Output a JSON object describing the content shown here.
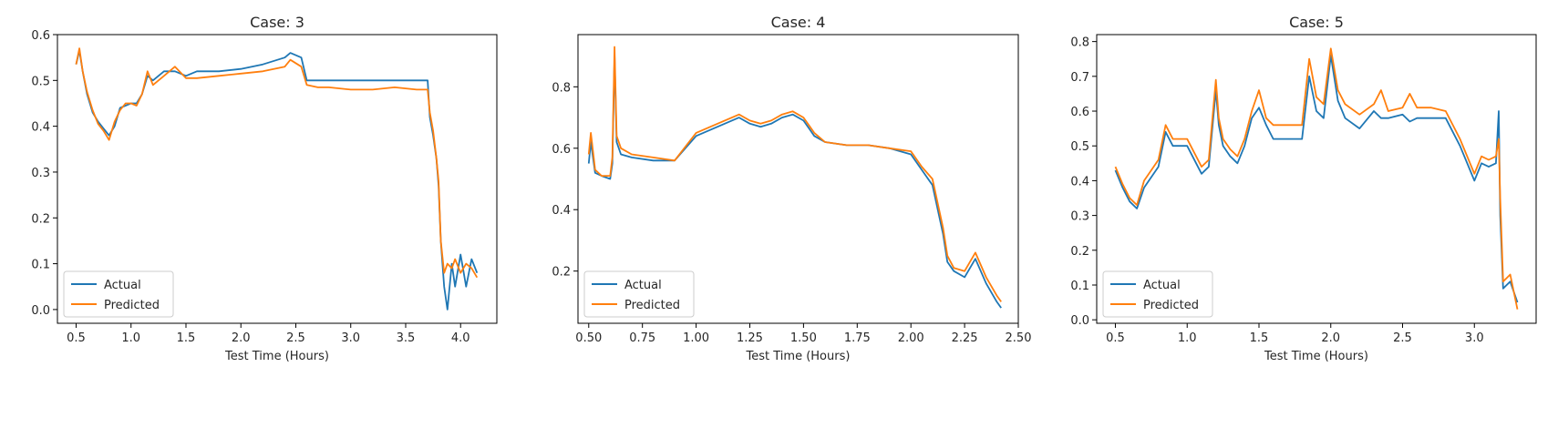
{
  "chart_data": [
    {
      "type": "line",
      "title": "Case: 3",
      "xlabel": "Test Time (Hours)",
      "ylabel": "",
      "xlim": [
        0.33,
        4.33
      ],
      "ylim": [
        -0.03,
        0.6
      ],
      "xticks": [
        0.5,
        1.0,
        1.5,
        2.0,
        2.5,
        3.0,
        3.5,
        4.0
      ],
      "xtick_labels": [
        "0.5",
        "1.0",
        "1.5",
        "2.0",
        "2.5",
        "3.0",
        "3.5",
        "4.0"
      ],
      "yticks": [
        0.0,
        0.1,
        0.2,
        0.3,
        0.4,
        0.5,
        0.6
      ],
      "ytick_labels": [
        "0.0",
        "0.1",
        "0.2",
        "0.3",
        "0.4",
        "0.5",
        "0.6"
      ],
      "legend_position": "lower-left",
      "series": [
        {
          "name": "Actual",
          "color": "#1f77b4",
          "x": [
            0.5,
            0.53,
            0.56,
            0.6,
            0.65,
            0.7,
            0.75,
            0.8,
            0.85,
            0.9,
            0.95,
            1.0,
            1.05,
            1.1,
            1.15,
            1.2,
            1.3,
            1.4,
            1.5,
            1.6,
            1.8,
            2.0,
            2.2,
            2.4,
            2.45,
            2.55,
            2.6,
            2.7,
            2.8,
            3.0,
            3.2,
            3.4,
            3.6,
            3.7,
            3.72,
            3.75,
            3.78,
            3.8,
            3.82,
            3.85,
            3.88,
            3.92,
            3.95,
            4.0,
            4.05,
            4.1,
            4.15
          ],
          "y": [
            0.535,
            0.565,
            0.52,
            0.47,
            0.43,
            0.41,
            0.395,
            0.38,
            0.4,
            0.44,
            0.445,
            0.45,
            0.45,
            0.47,
            0.51,
            0.5,
            0.52,
            0.52,
            0.51,
            0.52,
            0.52,
            0.525,
            0.535,
            0.55,
            0.56,
            0.55,
            0.5,
            0.5,
            0.5,
            0.5,
            0.5,
            0.5,
            0.5,
            0.5,
            0.42,
            0.38,
            0.33,
            0.27,
            0.15,
            0.05,
            0.0,
            0.1,
            0.05,
            0.12,
            0.05,
            0.11,
            0.08
          ]
        },
        {
          "name": "Predicted",
          "color": "#ff7f0e",
          "x": [
            0.5,
            0.53,
            0.56,
            0.6,
            0.65,
            0.7,
            0.75,
            0.8,
            0.85,
            0.9,
            0.95,
            1.0,
            1.05,
            1.1,
            1.15,
            1.2,
            1.3,
            1.4,
            1.5,
            1.6,
            1.8,
            2.0,
            2.2,
            2.4,
            2.45,
            2.55,
            2.6,
            2.7,
            2.8,
            3.0,
            3.2,
            3.4,
            3.6,
            3.7,
            3.72,
            3.75,
            3.78,
            3.8,
            3.82,
            3.85,
            3.88,
            3.92,
            3.95,
            4.0,
            4.05,
            4.1,
            4.15
          ],
          "y": [
            0.535,
            0.57,
            0.52,
            0.475,
            0.435,
            0.405,
            0.39,
            0.37,
            0.41,
            0.435,
            0.45,
            0.45,
            0.445,
            0.47,
            0.52,
            0.49,
            0.51,
            0.53,
            0.505,
            0.505,
            0.51,
            0.515,
            0.52,
            0.53,
            0.545,
            0.53,
            0.49,
            0.485,
            0.485,
            0.48,
            0.48,
            0.485,
            0.48,
            0.48,
            0.43,
            0.39,
            0.33,
            0.28,
            0.15,
            0.08,
            0.1,
            0.09,
            0.11,
            0.08,
            0.1,
            0.09,
            0.07
          ]
        }
      ]
    },
    {
      "type": "line",
      "title": "Case: 4",
      "xlabel": "Test Time (Hours)",
      "ylabel": "",
      "xlim": [
        0.45,
        2.5
      ],
      "ylim": [
        0.03,
        0.97
      ],
      "xticks": [
        0.5,
        0.75,
        1.0,
        1.25,
        1.5,
        1.75,
        2.0,
        2.25,
        2.5
      ],
      "xtick_labels": [
        "0.50",
        "0.75",
        "1.00",
        "1.25",
        "1.50",
        "1.75",
        "2.00",
        "2.25",
        "2.50"
      ],
      "yticks": [
        0.2,
        0.4,
        0.6,
        0.8
      ],
      "ytick_labels": [
        "0.2",
        "0.4",
        "0.6",
        "0.8"
      ],
      "legend_position": "lower-left",
      "series": [
        {
          "name": "Actual",
          "color": "#1f77b4",
          "x": [
            0.5,
            0.51,
            0.53,
            0.56,
            0.6,
            0.61,
            0.62,
            0.63,
            0.65,
            0.7,
            0.8,
            0.9,
            1.0,
            1.1,
            1.2,
            1.25,
            1.3,
            1.35,
            1.4,
            1.45,
            1.5,
            1.55,
            1.6,
            1.7,
            1.8,
            1.9,
            2.0,
            2.05,
            2.1,
            2.15,
            2.17,
            2.2,
            2.25,
            2.3,
            2.35,
            2.4,
            2.42
          ],
          "y": [
            0.55,
            0.62,
            0.52,
            0.51,
            0.5,
            0.55,
            0.9,
            0.62,
            0.58,
            0.57,
            0.56,
            0.56,
            0.64,
            0.67,
            0.7,
            0.68,
            0.67,
            0.68,
            0.7,
            0.71,
            0.69,
            0.64,
            0.62,
            0.61,
            0.61,
            0.6,
            0.58,
            0.53,
            0.48,
            0.32,
            0.23,
            0.2,
            0.18,
            0.24,
            0.16,
            0.1,
            0.08
          ]
        },
        {
          "name": "Predicted",
          "color": "#ff7f0e",
          "x": [
            0.5,
            0.51,
            0.53,
            0.56,
            0.6,
            0.61,
            0.62,
            0.63,
            0.65,
            0.7,
            0.8,
            0.9,
            1.0,
            1.1,
            1.2,
            1.25,
            1.3,
            1.35,
            1.4,
            1.45,
            1.5,
            1.55,
            1.6,
            1.7,
            1.8,
            1.9,
            2.0,
            2.05,
            2.1,
            2.15,
            2.17,
            2.2,
            2.25,
            2.3,
            2.35,
            2.4,
            2.42
          ],
          "y": [
            0.58,
            0.65,
            0.53,
            0.51,
            0.51,
            0.57,
            0.93,
            0.64,
            0.6,
            0.58,
            0.57,
            0.56,
            0.65,
            0.68,
            0.71,
            0.69,
            0.68,
            0.69,
            0.71,
            0.72,
            0.7,
            0.65,
            0.62,
            0.61,
            0.61,
            0.6,
            0.59,
            0.54,
            0.5,
            0.34,
            0.25,
            0.21,
            0.2,
            0.26,
            0.18,
            0.12,
            0.1
          ]
        }
      ]
    },
    {
      "type": "line",
      "title": "Case: 5",
      "xlabel": "Test Time (Hours)",
      "ylabel": "",
      "xlim": [
        0.37,
        3.43
      ],
      "ylim": [
        -0.01,
        0.82
      ],
      "xticks": [
        0.5,
        1.0,
        1.5,
        2.0,
        2.5,
        3.0
      ],
      "xtick_labels": [
        "0.5",
        "1.0",
        "1.5",
        "2.0",
        "2.5",
        "3.0"
      ],
      "yticks": [
        0.0,
        0.1,
        0.2,
        0.3,
        0.4,
        0.5,
        0.6,
        0.7,
        0.8
      ],
      "ytick_labels": [
        "0.0",
        "0.1",
        "0.2",
        "0.3",
        "0.4",
        "0.5",
        "0.6",
        "0.7",
        "0.8"
      ],
      "legend_position": "lower-left",
      "series": [
        {
          "name": "Actual",
          "color": "#1f77b4",
          "x": [
            0.5,
            0.55,
            0.6,
            0.65,
            0.7,
            0.8,
            0.85,
            0.9,
            1.0,
            1.1,
            1.15,
            1.2,
            1.22,
            1.25,
            1.3,
            1.35,
            1.4,
            1.45,
            1.5,
            1.55,
            1.6,
            1.7,
            1.8,
            1.85,
            1.9,
            1.95,
            2.0,
            2.05,
            2.1,
            2.2,
            2.3,
            2.35,
            2.4,
            2.5,
            2.55,
            2.6,
            2.7,
            2.8,
            2.9,
            3.0,
            3.05,
            3.1,
            3.15,
            3.17,
            3.18,
            3.2,
            3.25,
            3.3
          ],
          "y": [
            0.43,
            0.38,
            0.34,
            0.32,
            0.38,
            0.44,
            0.54,
            0.5,
            0.5,
            0.42,
            0.44,
            0.66,
            0.56,
            0.5,
            0.47,
            0.45,
            0.5,
            0.58,
            0.61,
            0.56,
            0.52,
            0.52,
            0.52,
            0.7,
            0.6,
            0.58,
            0.76,
            0.63,
            0.58,
            0.55,
            0.6,
            0.58,
            0.58,
            0.59,
            0.57,
            0.58,
            0.58,
            0.58,
            0.5,
            0.4,
            0.45,
            0.44,
            0.45,
            0.6,
            0.3,
            0.09,
            0.11,
            0.05
          ]
        },
        {
          "name": "Predicted",
          "color": "#ff7f0e",
          "x": [
            0.5,
            0.55,
            0.6,
            0.65,
            0.7,
            0.8,
            0.85,
            0.9,
            1.0,
            1.1,
            1.15,
            1.2,
            1.22,
            1.25,
            1.3,
            1.35,
            1.4,
            1.45,
            1.5,
            1.55,
            1.6,
            1.7,
            1.8,
            1.85,
            1.9,
            1.95,
            2.0,
            2.05,
            2.1,
            2.2,
            2.3,
            2.35,
            2.4,
            2.5,
            2.55,
            2.6,
            2.7,
            2.8,
            2.9,
            3.0,
            3.05,
            3.1,
            3.15,
            3.17,
            3.18,
            3.2,
            3.25,
            3.3
          ],
          "y": [
            0.44,
            0.39,
            0.35,
            0.33,
            0.4,
            0.46,
            0.56,
            0.52,
            0.52,
            0.44,
            0.46,
            0.69,
            0.58,
            0.52,
            0.49,
            0.47,
            0.52,
            0.6,
            0.66,
            0.58,
            0.56,
            0.56,
            0.56,
            0.75,
            0.64,
            0.62,
            0.78,
            0.66,
            0.62,
            0.59,
            0.62,
            0.66,
            0.6,
            0.61,
            0.65,
            0.61,
            0.61,
            0.6,
            0.52,
            0.42,
            0.47,
            0.46,
            0.47,
            0.52,
            0.35,
            0.11,
            0.13,
            0.03
          ]
        }
      ]
    }
  ]
}
